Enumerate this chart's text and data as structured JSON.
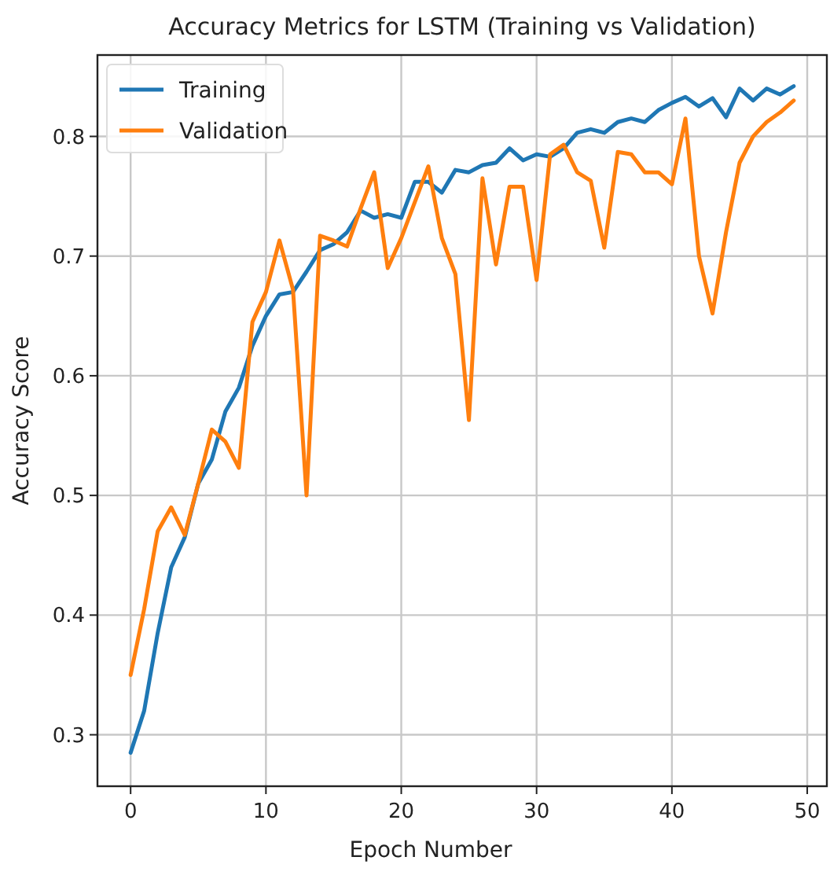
{
  "chart_data": {
    "type": "line",
    "title": "Accuracy Metrics for LSTM (Training vs Validation)",
    "xlabel": "Epoch Number",
    "ylabel": "Accuracy Score",
    "x": [
      0,
      1,
      2,
      3,
      4,
      5,
      6,
      7,
      8,
      9,
      10,
      11,
      12,
      13,
      14,
      15,
      16,
      17,
      18,
      19,
      20,
      21,
      22,
      23,
      24,
      25,
      26,
      27,
      28,
      29,
      30,
      31,
      32,
      33,
      34,
      35,
      36,
      37,
      38,
      39,
      40,
      41,
      42,
      43,
      44,
      45,
      46,
      47,
      48,
      49
    ],
    "series": [
      {
        "name": "Training",
        "color": "#1f77b4",
        "values": [
          0.285,
          0.32,
          0.385,
          0.44,
          0.465,
          0.51,
          0.53,
          0.57,
          0.59,
          0.625,
          0.65,
          0.668,
          0.67,
          0.687,
          0.705,
          0.71,
          0.72,
          0.738,
          0.732,
          0.735,
          0.732,
          0.762,
          0.762,
          0.753,
          0.772,
          0.77,
          0.776,
          0.778,
          0.79,
          0.78,
          0.785,
          0.783,
          0.79,
          0.803,
          0.806,
          0.803,
          0.812,
          0.815,
          0.812,
          0.822,
          0.828,
          0.833,
          0.825,
          0.832,
          0.816,
          0.84,
          0.83,
          0.84,
          0.835,
          0.842
        ]
      },
      {
        "name": "Validation",
        "color": "#ff7f0e",
        "values": [
          0.35,
          0.405,
          0.47,
          0.49,
          0.467,
          0.51,
          0.555,
          0.545,
          0.523,
          0.645,
          0.67,
          0.713,
          0.672,
          0.5,
          0.717,
          0.713,
          0.708,
          0.74,
          0.77,
          0.69,
          0.715,
          0.745,
          0.775,
          0.715,
          0.685,
          0.563,
          0.765,
          0.693,
          0.758,
          0.758,
          0.68,
          0.785,
          0.793,
          0.77,
          0.763,
          0.707,
          0.787,
          0.785,
          0.77,
          0.77,
          0.76,
          0.815,
          0.7,
          0.652,
          0.72,
          0.778,
          0.8,
          0.812,
          0.82,
          0.83
        ]
      }
    ],
    "xlim": [
      -2.45,
      51.45
    ],
    "xticks": [
      0,
      10,
      20,
      30,
      40,
      50
    ],
    "ylim": [
      0.257,
      0.868
    ],
    "yticks": [
      0.3,
      0.4,
      0.5,
      0.6,
      0.7,
      0.8
    ],
    "grid": true,
    "legend": "top left",
    "line_style": "solid",
    "marker": "none"
  }
}
